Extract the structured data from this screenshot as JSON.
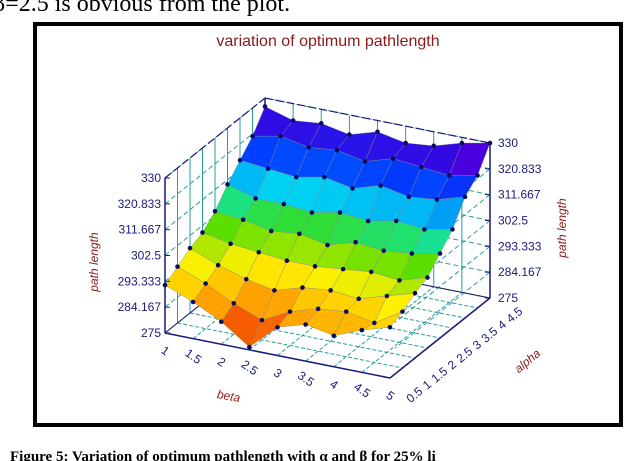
{
  "page": {
    "top_text": "β=2.5 is obvious from the plot.",
    "caption": "Figure 5: Variation of optimum pathlength with α and β for 25% li"
  },
  "chart_data": {
    "type": "surface",
    "title": "variation of optimum pathlength",
    "xlabel": "beta",
    "ylabel": "alpha",
    "zlabel": "path length",
    "x": [
      1,
      1.5,
      2,
      2.5,
      3,
      3.5,
      4,
      4.5,
      5
    ],
    "y": [
      0.5,
      1,
      1.5,
      2,
      2.5,
      3,
      3.5,
      4,
      4.5
    ],
    "xticks": [
      "1",
      "1.5",
      "2",
      "2.5",
      "3",
      "3.5",
      "4",
      "4.5",
      "5"
    ],
    "yticks": [
      "0.5",
      "1",
      "1.5",
      "2",
      "2.5",
      "3",
      "3.5",
      "4",
      "4.5"
    ],
    "zticks": [
      "275",
      "284.167",
      "293.333",
      "302.5",
      "311.667",
      "320.833",
      "330"
    ],
    "zlim": [
      275,
      330
    ],
    "z": [
      [
        292,
        288,
        283,
        276,
        285,
        288,
        286,
        290,
        293
      ],
      [
        295,
        291,
        286,
        282,
        287,
        290,
        291,
        289,
        295
      ],
      [
        298,
        294,
        291,
        289,
        292,
        293,
        292,
        295,
        298
      ],
      [
        300,
        298,
        297,
        296,
        296,
        297,
        298,
        297,
        300
      ],
      [
        304,
        303,
        301,
        302,
        300,
        303,
        302,
        303,
        305
      ],
      [
        310,
        307,
        307,
        306,
        308,
        307,
        309,
        308,
        310
      ],
      [
        315,
        314,
        313,
        315,
        313,
        316,
        314,
        315,
        318
      ],
      [
        320,
        322,
        320,
        321,
        319,
        322,
        321,
        320,
        322
      ],
      [
        327,
        324,
        325,
        323,
        326,
        324,
        325,
        328,
        330
      ]
    ],
    "colormap": "rainbow",
    "grid": true,
    "colors": {
      "title": "#8b1a1a",
      "axis": "#1a1a7a",
      "grid": "#2a9d9d",
      "mesh": "#8a8a8a",
      "points": "#0a0a60"
    }
  }
}
